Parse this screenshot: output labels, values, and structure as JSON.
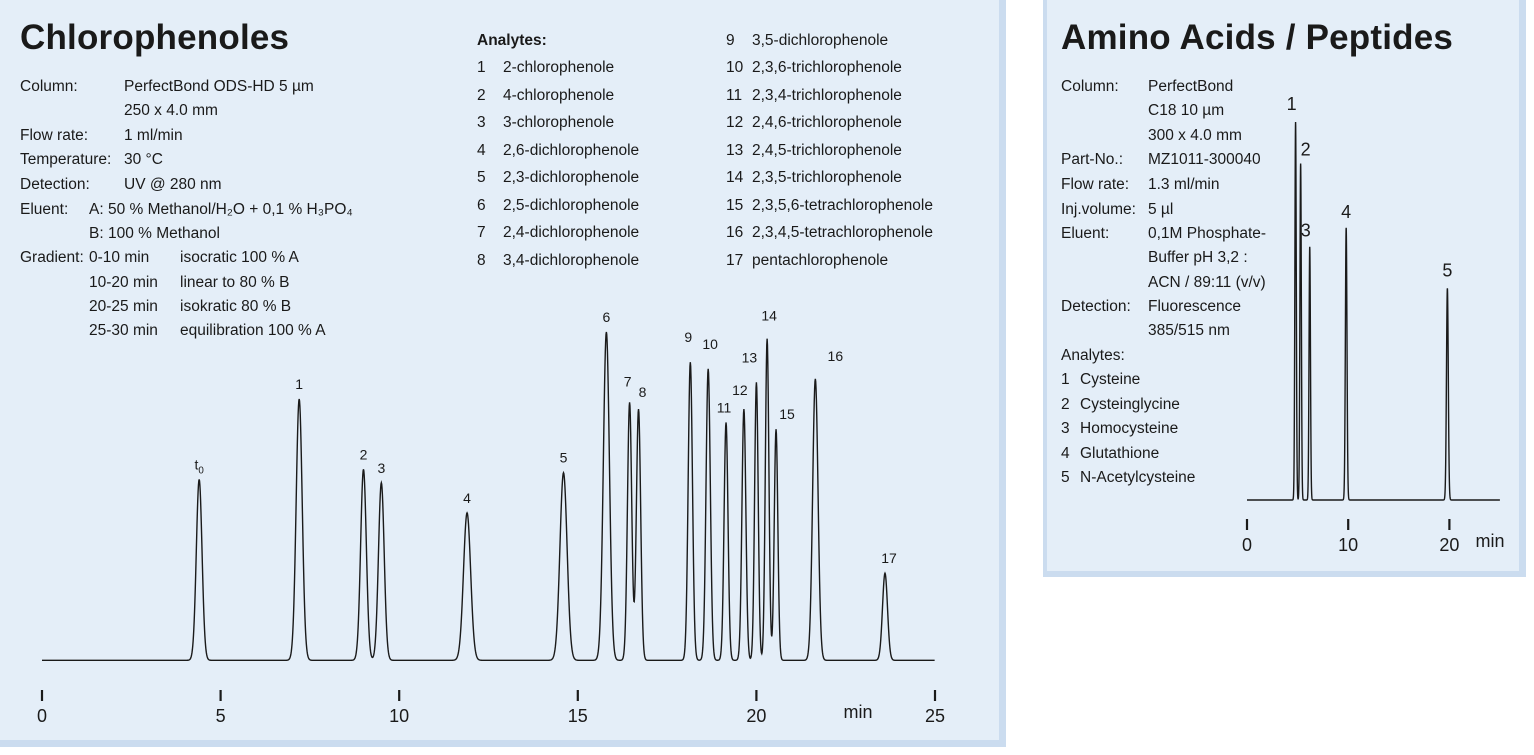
{
  "left": {
    "title": "Chlorophenoles",
    "conditions": {
      "column_label": "Column:",
      "column_1": "PerfectBond ODS-HD 5 µm",
      "column_2": "250 x 4.0 mm",
      "flow_label": "Flow rate:",
      "flow": "1 ml/min",
      "temp_label": "Temperature:",
      "temp": "30 °C",
      "detection_label": "Detection:",
      "detection": "UV @ 280 nm",
      "eluent_label": "Eluent:",
      "eluent_a": "A: 50 % Methanol/H₂O + 0,1 % H₃PO₄",
      "eluent_b": "B: 100 % Methanol",
      "gradient_label": "Gradient:",
      "gradient": [
        {
          "time": "0-10 min",
          "step": "isocratic 100 % A"
        },
        {
          "time": "10-20 min",
          "step": "linear to 80 % B"
        },
        {
          "time": "20-25 min",
          "step": "isokratic 80 % B"
        },
        {
          "time": "25-30 min",
          "step": "equilibration 100 % A"
        }
      ]
    },
    "analytes_title": "Analytes:",
    "analytes": [
      {
        "n": "1",
        "name": "2-chlorophenole"
      },
      {
        "n": "2",
        "name": "4-chlorophenole"
      },
      {
        "n": "3",
        "name": "3-chlorophenole"
      },
      {
        "n": "4",
        "name": "2,6-dichlorophenole"
      },
      {
        "n": "5",
        "name": "2,3-dichlorophenole"
      },
      {
        "n": "6",
        "name": "2,5-dichlorophenole"
      },
      {
        "n": "7",
        "name": "2,4-dichlorophenole"
      },
      {
        "n": "8",
        "name": "3,4-dichlorophenole"
      },
      {
        "n": "9",
        "name": "3,5-dichlorophenole"
      },
      {
        "n": "10",
        "name": "2,3,6-trichlorophenole"
      },
      {
        "n": "11",
        "name": "2,3,4-trichlorophenole"
      },
      {
        "n": "12",
        "name": "2,4,6-trichlorophenole"
      },
      {
        "n": "13",
        "name": "2,4,5-trichlorophenole"
      },
      {
        "n": "14",
        "name": "2,3,5-trichlorophenole"
      },
      {
        "n": "15",
        "name": "2,3,5,6-tetrachlorophenole"
      },
      {
        "n": "16",
        "name": "2,3,4,5-tetrachlorophenole"
      },
      {
        "n": "17",
        "name": "pentachlorophenole"
      }
    ]
  },
  "right": {
    "title": "Amino Acids / Peptides",
    "conditions": {
      "column_label": "Column:",
      "column_1": "PerfectBond",
      "column_2": "C18 10 µm",
      "column_3": "300 x 4.0 mm",
      "part_label": "Part-No.:",
      "part": "MZ1011-300040",
      "flow_label": "Flow rate:",
      "flow": "1.3 ml/min",
      "inj_label": "Inj.volume:",
      "inj": "5 µl",
      "eluent_label": "Eluent:",
      "eluent_1": "0,1M Phosphate-",
      "eluent_2": "Buffer pH 3,2 :",
      "eluent_3": "ACN / 89:11 (v/v)",
      "detection_label": "Detection:",
      "detection_1": "Fluorescence",
      "detection_2": "385/515 nm"
    },
    "analytes_title": "Analytes:",
    "analytes": [
      {
        "n": "1",
        "name": "Cysteine"
      },
      {
        "n": "2",
        "name": "Cysteinglycine"
      },
      {
        "n": "3",
        "name": "Homocysteine"
      },
      {
        "n": "4",
        "name": "Glutathione"
      },
      {
        "n": "5",
        "name": "N-Acetylcysteine"
      }
    ]
  },
  "chart_data": [
    {
      "type": "line",
      "title": "Chlorophenoles",
      "xlabel": "min",
      "ylabel": "",
      "xlim": [
        0,
        25
      ],
      "xticks": [
        0,
        5,
        10,
        15,
        20,
        25
      ],
      "ylim": [
        0,
        1
      ],
      "baseline": 0.02,
      "peaks": [
        {
          "label": "t0",
          "x": 4.4,
          "y": 0.56,
          "w": 0.08
        },
        {
          "label": "1",
          "x": 7.2,
          "y": 0.8,
          "w": 0.085
        },
        {
          "label": "2",
          "x": 9.0,
          "y": 0.59,
          "w": 0.08
        },
        {
          "label": "3",
          "x": 9.5,
          "y": 0.55,
          "w": 0.08
        },
        {
          "label": "4",
          "x": 11.9,
          "y": 0.46,
          "w": 0.1
        },
        {
          "label": "5",
          "x": 14.6,
          "y": 0.58,
          "w": 0.1
        },
        {
          "label": "6",
          "x": 15.8,
          "y": 1.0,
          "w": 0.085
        },
        {
          "label": "7",
          "x": 16.45,
          "y": 0.79,
          "w": 0.06
        },
        {
          "label": "8",
          "x": 16.7,
          "y": 0.77,
          "w": 0.06
        },
        {
          "label": "9",
          "x": 18.15,
          "y": 0.91,
          "w": 0.06
        },
        {
          "label": "10",
          "x": 18.65,
          "y": 0.89,
          "w": 0.06
        },
        {
          "label": "11",
          "x": 19.15,
          "y": 0.73,
          "w": 0.055
        },
        {
          "label": "12",
          "x": 19.65,
          "y": 0.77,
          "w": 0.055
        },
        {
          "label": "13",
          "x": 20.0,
          "y": 0.85,
          "w": 0.05
        },
        {
          "label": "14",
          "x": 20.3,
          "y": 0.98,
          "w": 0.05
        },
        {
          "label": "15",
          "x": 20.55,
          "y": 0.71,
          "w": 0.05
        },
        {
          "label": "16",
          "x": 21.65,
          "y": 0.86,
          "w": 0.075
        },
        {
          "label": "17",
          "x": 23.6,
          "y": 0.28,
          "w": 0.07
        }
      ]
    },
    {
      "type": "line",
      "title": "Amino Acids / Peptides",
      "xlabel": "min",
      "ylabel": "",
      "xlim": [
        0,
        25
      ],
      "xticks": [
        0,
        10,
        20
      ],
      "ylim": [
        0,
        1
      ],
      "baseline": 0.0,
      "peaks": [
        {
          "label": "1",
          "x": 4.8,
          "y": 1.0,
          "w": 0.07
        },
        {
          "label": "2",
          "x": 5.3,
          "y": 0.89,
          "w": 0.07
        },
        {
          "label": "3",
          "x": 6.2,
          "y": 0.67,
          "w": 0.07
        },
        {
          "label": "4",
          "x": 9.8,
          "y": 0.72,
          "w": 0.08
        },
        {
          "label": "5",
          "x": 19.8,
          "y": 0.56,
          "w": 0.09
        }
      ]
    }
  ]
}
